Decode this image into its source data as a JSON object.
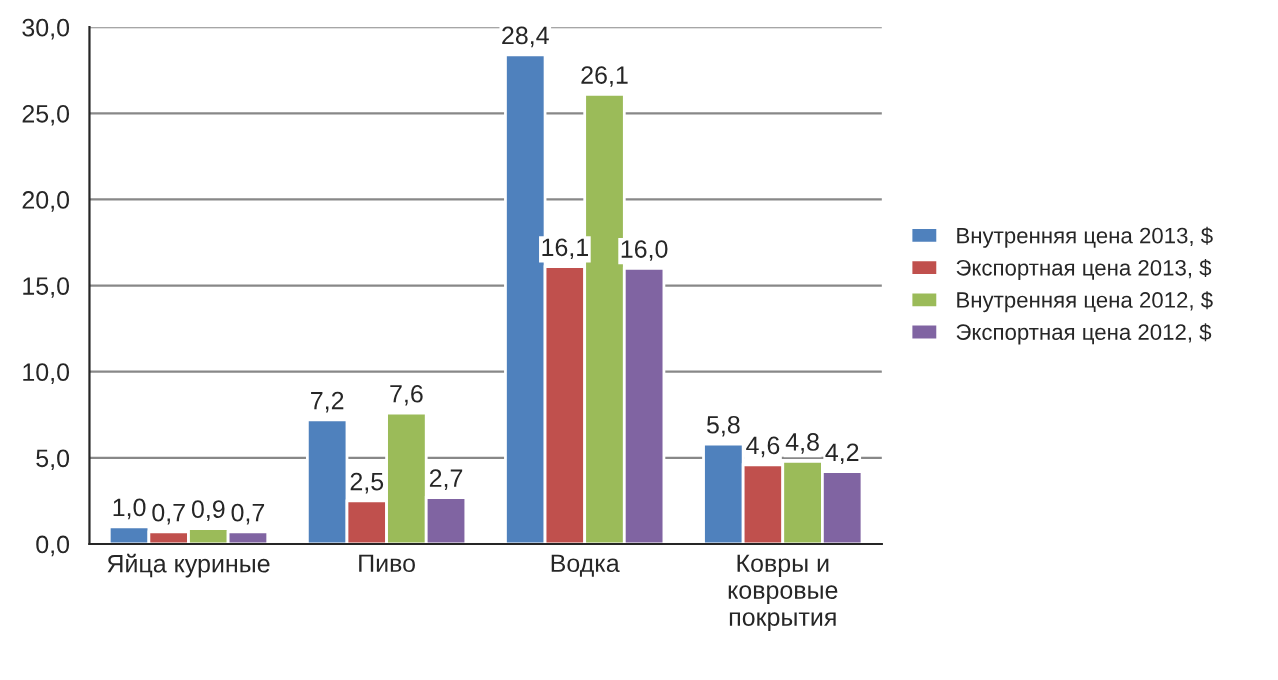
{
  "chart_data": {
    "type": "bar",
    "categories": [
      "Яйца куриные",
      "Пиво",
      "Водка",
      "Ковры и\nковровые\nпокрытия"
    ],
    "series": [
      {
        "name": "Внутренняя цена 2013, $",
        "color": "#4f81bd",
        "values": [
          1.0,
          7.2,
          28.4,
          5.8
        ],
        "value_labels": [
          "1,0",
          "7,2",
          "28,4",
          "5,8"
        ]
      },
      {
        "name": "Экспортная цена 2013, $",
        "color": "#c0504d",
        "values": [
          0.7,
          2.5,
          16.1,
          4.6
        ],
        "value_labels": [
          "0,7",
          "2,5",
          "16,1",
          "4,6"
        ]
      },
      {
        "name": "Внутренняя цена 2012, $",
        "color": "#9bbb59",
        "values": [
          0.9,
          7.6,
          26.1,
          4.8
        ],
        "value_labels": [
          "0,9",
          "7,6",
          "26,1",
          "4,8"
        ]
      },
      {
        "name": "Экспортная цена 2012, $",
        "color": "#8064a2",
        "values": [
          0.7,
          2.7,
          16.0,
          4.2
        ],
        "value_labels": [
          "0,7",
          "2,7",
          "16,0",
          "4,2"
        ]
      }
    ],
    "ylim": [
      0,
      30
    ],
    "yticks": [
      {
        "value": 0,
        "label": "0,0"
      },
      {
        "value": 5,
        "label": "5,0"
      },
      {
        "value": 10,
        "label": "10,0"
      },
      {
        "value": 15,
        "label": "15,0"
      },
      {
        "value": 20,
        "label": "20,0"
      },
      {
        "value": 25,
        "label": "25,0"
      },
      {
        "value": 30,
        "label": "30,0"
      }
    ],
    "grid": "y",
    "legend": "right"
  }
}
